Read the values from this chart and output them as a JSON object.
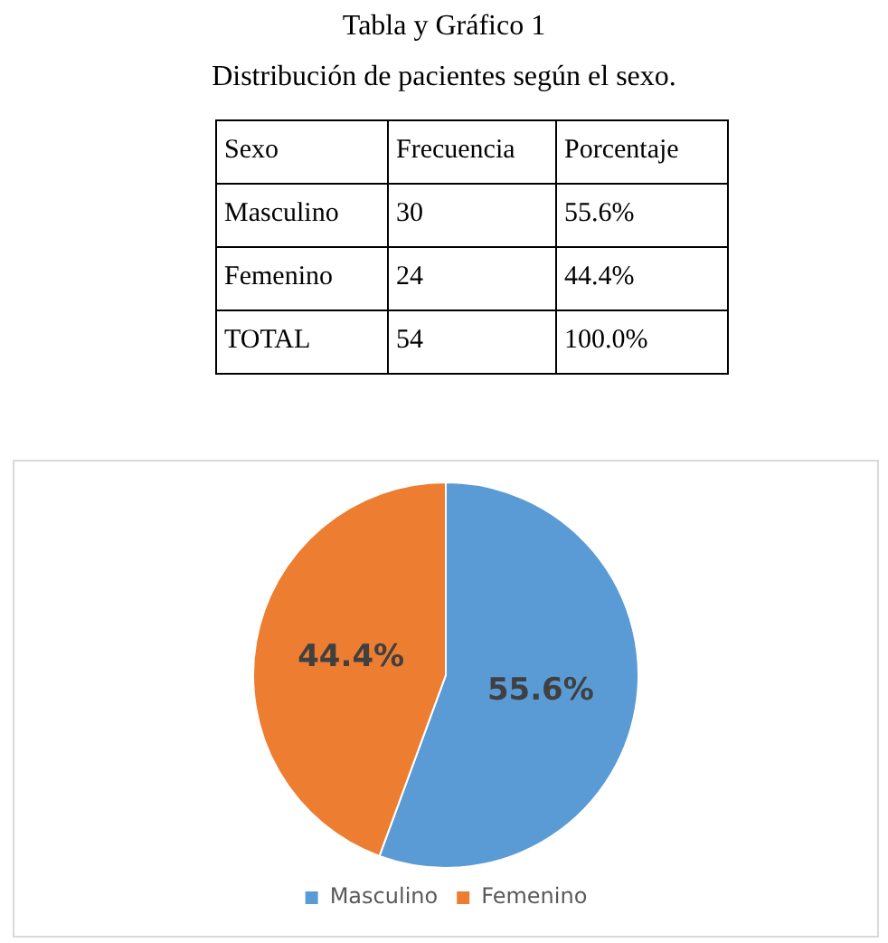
{
  "chart_data": {
    "type": "pie",
    "title": "Tabla y Gráfico 1",
    "subtitle": "Distribución de pacientes según el sexo.",
    "categories": [
      "Masculino",
      "Femenino"
    ],
    "values": [
      55.6,
      44.4
    ],
    "value_labels": [
      "55.6%",
      "44.4%"
    ],
    "colors": [
      "#5b9bd5",
      "#ed7d31"
    ],
    "annotations": [
      "Sexo",
      "Frecuencia",
      "Porcentaje",
      "30",
      "24",
      "TOTAL",
      "54",
      "100.0%"
    ],
    "legend": "bottom"
  }
}
